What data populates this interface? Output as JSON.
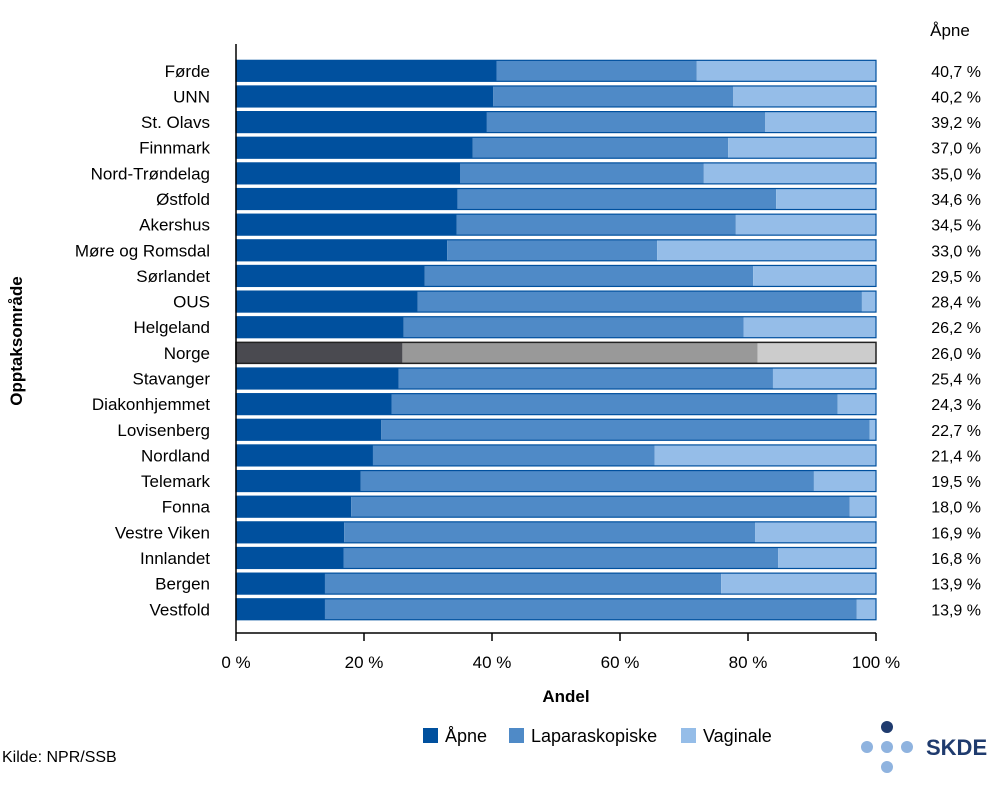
{
  "chart_data": {
    "type": "bar",
    "orientation": "horizontal",
    "stacked": true,
    "categories": [
      "Førde",
      "UNN",
      "St. Olavs",
      "Finnmark",
      "Nord-Trøndelag",
      "Østfold",
      "Akershus",
      "Møre og Romsdal",
      "Sørlandet",
      "OUS",
      "Helgeland",
      "Norge",
      "Stavanger",
      "Diakonhjemmet",
      "Lovisenberg",
      "Nordland",
      "Telemark",
      "Fonna",
      "Vestre Viken",
      "Innlandet",
      "Bergen",
      "Vestfold"
    ],
    "highlight_category": "Norge",
    "series": [
      {
        "name": "Åpne",
        "color": "#00509e",
        "highlight_color": "#4a4a50",
        "values": [
          40.7,
          40.2,
          39.2,
          37.0,
          35.0,
          34.6,
          34.5,
          33.0,
          29.5,
          28.4,
          26.2,
          26.0,
          25.4,
          24.3,
          22.7,
          21.4,
          19.5,
          18.0,
          16.9,
          16.8,
          13.9,
          13.9
        ]
      },
      {
        "name": "Laparaskopiske",
        "color": "#4f8ac7",
        "highlight_color": "#999999",
        "values": [
          31.3,
          37.5,
          43.5,
          39.9,
          38.1,
          49.8,
          43.6,
          32.8,
          51.3,
          69.4,
          53.1,
          55.5,
          58.5,
          69.7,
          76.3,
          44.0,
          70.8,
          77.9,
          64.2,
          67.9,
          61.9,
          83.1
        ]
      },
      {
        "name": "Vaginale",
        "color": "#95bde8",
        "highlight_color": "#cccccc",
        "values": [
          28.0,
          22.3,
          17.3,
          23.1,
          26.9,
          15.6,
          21.9,
          34.2,
          19.2,
          2.2,
          20.7,
          18.5,
          16.1,
          6.0,
          1.0,
          34.6,
          9.7,
          4.1,
          18.9,
          15.3,
          24.2,
          3.0
        ]
      }
    ],
    "value_labels": [
      "40,7 %",
      "40,2 %",
      "39,2 %",
      "37,0 %",
      "35,0 %",
      "34,6 %",
      "34,5 %",
      "33,0 %",
      "29,5 %",
      "28,4 %",
      "26,2 %",
      "26,0 %",
      "25,4 %",
      "24,3 %",
      "22,7 %",
      "21,4 %",
      "19,5 %",
      "18,0 %",
      "16,9 %",
      "16,8 %",
      "13,9 %",
      "13,9 %"
    ],
    "value_column_title": "Åpne",
    "xlabel": "Andel",
    "ylabel": "Opptaksområde",
    "xlim": [
      0,
      100
    ],
    "xticks": [
      "0 %",
      "20 %",
      "40 %",
      "60 %",
      "80 %",
      "100 %"
    ],
    "grid": false,
    "legend_position": "bottom"
  },
  "source": "Kilde: NPR/SSB",
  "logo": {
    "text": "SKDE",
    "color": "#1f3b6e",
    "dot_color": "#8fb3df",
    "dot_dark": "#1f3b6e"
  }
}
